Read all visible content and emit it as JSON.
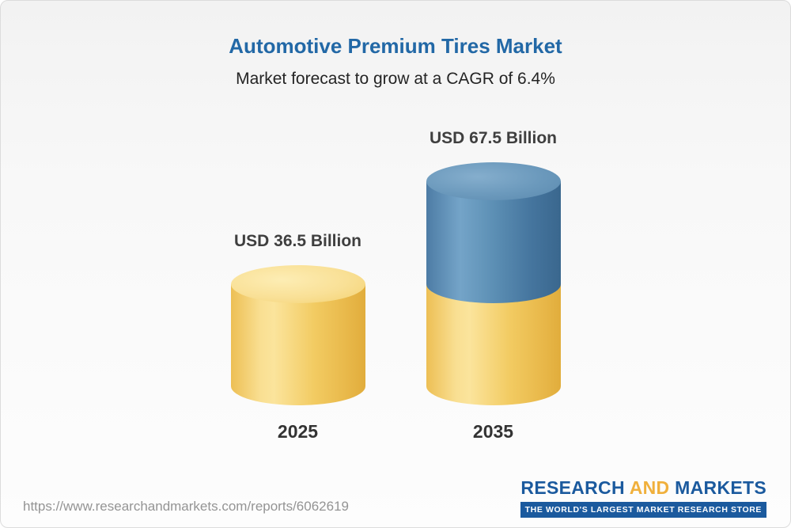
{
  "header": {
    "title": "Automotive Premium Tires Market",
    "subtitle": "Market forecast to grow at a CAGR of 6.4%"
  },
  "chart_data": {
    "type": "bar",
    "style": "3d-cylinder",
    "categories": [
      "2025",
      "2035"
    ],
    "values": [
      36.5,
      67.5
    ],
    "value_labels": [
      "USD 36.5 Billion",
      "USD 67.5 Billion"
    ],
    "unit": "USD Billion",
    "title": "Automotive Premium Tires Market",
    "subtitle": "Market forecast to grow at a CAGR of 6.4%",
    "cagr_percent": 6.4,
    "legend": "none",
    "grid": false,
    "colors": {
      "base_segment": "#f2c95f",
      "growth_segment": "#4f81ab",
      "title_text": "#2268a6"
    }
  },
  "footer": {
    "url": "https://www.researchandmarkets.com/reports/6062619",
    "logo": {
      "word1": "RESEARCH",
      "word2": "AND",
      "word3": "MARKETS",
      "tagline": "THE WORLD'S LARGEST MARKET RESEARCH STORE"
    }
  }
}
